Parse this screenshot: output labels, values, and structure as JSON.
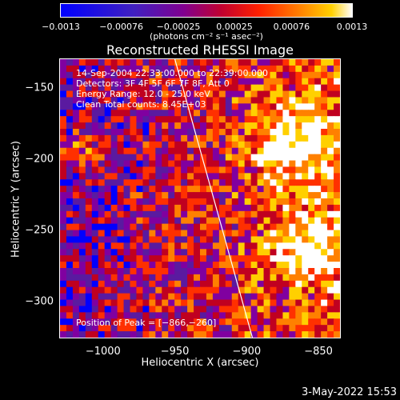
{
  "chart_data": {
    "type": "heatmap",
    "title": "Reconstructed RHESSI Image",
    "xlabel": "Heliocentric X (arcsec)",
    "ylabel": "Heliocentric Y (arcsec)",
    "xlim": [
      -1030,
      -835
    ],
    "ylim": [
      -325,
      -130
    ],
    "x_ticks": [
      "−1000",
      "−950",
      "−900",
      "−850"
    ],
    "x_tick_values": [
      -1000,
      -950,
      -900,
      -850
    ],
    "y_ticks": [
      "−150",
      "−200",
      "−250",
      "−300"
    ],
    "y_tick_values": [
      -150,
      -200,
      -250,
      -300
    ],
    "colorbar": {
      "ticks": [
        "−0.0013",
        "−0.00076",
        "−0.00025",
        "0.00025",
        "0.00076",
        "0.0013"
      ],
      "tick_values": [
        -0.0013,
        -0.00076,
        -0.00025,
        0.00025,
        0.00076,
        0.0013
      ],
      "range": [
        -0.0013,
        0.0013
      ],
      "unit_label": "(photons cm⁻² s⁻¹ asec⁻²)",
      "colors": [
        "#0000ff",
        "#5a1aa0",
        "#8000a0",
        "#c00020",
        "#ff3000",
        "#ff8000",
        "#ffd000",
        "#ffffff"
      ]
    },
    "limb_line": {
      "x1": -950,
      "y1": -130,
      "x2": -896,
      "y2": -325
    },
    "annotations": [
      "14-Sep-2004 22:33:00.000 to 22:39:00.000",
      "Detectors: 3F 4F 5F 6F 7F 8F, Att 0",
      "Energy Range: 12.0 - 25.0 keV",
      "Clean     Total counts: 8.45E+03"
    ],
    "peak_text": "Position of Peak = [−866,−260]",
    "grid": false
  },
  "footer": {
    "date": "3-May-2022 15:53"
  }
}
